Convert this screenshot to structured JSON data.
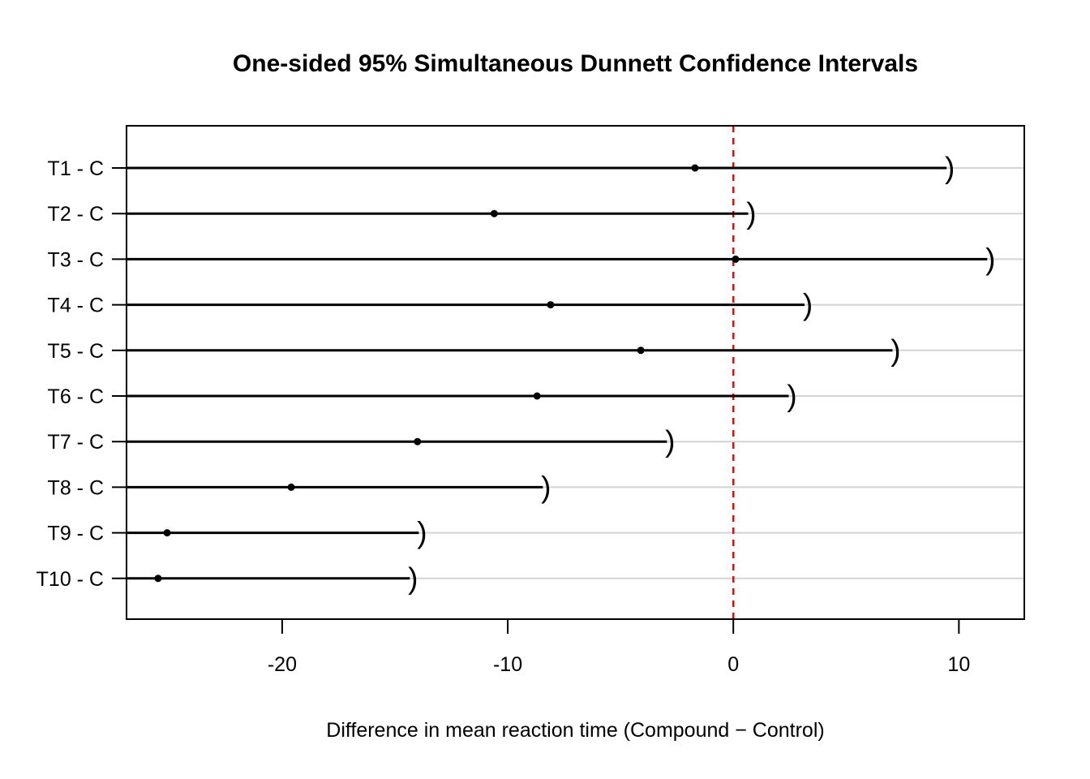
{
  "figure": {
    "title": "One-sided 95% Simultaneous Dunnett Confidence Intervals",
    "xlabel": "Difference in mean reaction time (Compound − Control)"
  },
  "chart_data": {
    "type": "interval",
    "title": "One-sided 95% Simultaneous Dunnett Confidence Intervals",
    "xlabel": "Difference in mean reaction time (Compound − Control)",
    "ylabel": "",
    "x_ticks": [
      -20,
      -10,
      0,
      10
    ],
    "xlim": [
      -26.9,
      12.9
    ],
    "grid": "horizontal-light-gray",
    "grid_color": "#D3D3D3",
    "line_color": "#000000",
    "point_color": "#000000",
    "upper_marker_glyph": ")",
    "reference_line": {
      "x": 0,
      "color": "#FF0000",
      "style": "dashed"
    },
    "interval_type": "one-sided upper bounds (lower limit = -Inf)",
    "comparisons": [
      {
        "label": "T1 - C",
        "estimate": -1.7,
        "lower": "-Inf",
        "upper": 9.6
      },
      {
        "label": "T2 - C",
        "estimate": -10.6,
        "lower": "-Inf",
        "upper": 0.8
      },
      {
        "label": "T3 - C",
        "estimate": 0.1,
        "lower": "-Inf",
        "upper": 11.4
      },
      {
        "label": "T4 - C",
        "estimate": -8.1,
        "lower": "-Inf",
        "upper": 3.3
      },
      {
        "label": "T5 - C",
        "estimate": -4.1,
        "lower": "-Inf",
        "upper": 7.2
      },
      {
        "label": "T6 - C",
        "estimate": -8.7,
        "lower": "-Inf",
        "upper": 2.6
      },
      {
        "label": "T7 - C",
        "estimate": -14.0,
        "lower": "-Inf",
        "upper": -2.8
      },
      {
        "label": "T8 - C",
        "estimate": -19.6,
        "lower": "-Inf",
        "upper": -8.3
      },
      {
        "label": "T9 - C",
        "estimate": -25.1,
        "lower": "-Inf",
        "upper": -13.8
      },
      {
        "label": "T10 - C",
        "estimate": -25.5,
        "lower": "-Inf",
        "upper": -14.2
      }
    ]
  }
}
